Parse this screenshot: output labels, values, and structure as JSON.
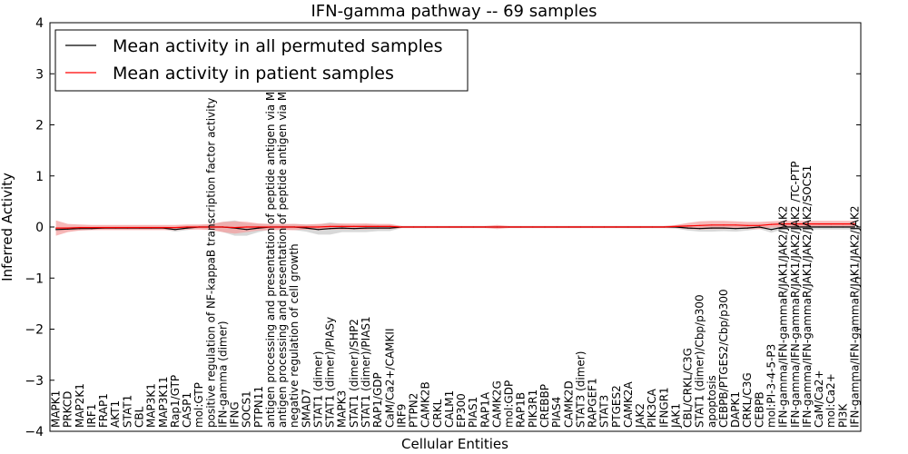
{
  "chart_data": {
    "type": "line",
    "title": "IFN-gamma pathway -- 69 samples",
    "xlabel": "Cellular Entities",
    "ylabel": "Inferred Activity",
    "ylim": [
      -4,
      4
    ],
    "yticks": [
      -4,
      -3,
      -2,
      -1,
      0,
      1,
      2,
      3,
      4
    ],
    "ytick_labels": [
      "−4",
      "−3",
      "−2",
      "−1",
      "0",
      "1",
      "2",
      "3",
      "4"
    ],
    "legend_position": "top-left",
    "categories": [
      "MAPK1",
      "PRKCD",
      "MAP2K1",
      "IRF1",
      "FRAP1",
      "AKT1",
      "STAT1",
      "CBL",
      "MAP3K1",
      "MAP3K11",
      "Rap1/GTP",
      "CASP1",
      "mol:GTP",
      "positive regulation of NF-kappaB transcription factor activity",
      "IFN-gamma (dimer)",
      "IFNG",
      "SOCS1",
      "PTPN11",
      "antigen processing and presentation of peptide antigen via MHC class I",
      "antigen processing and presentation of peptide antigen via MHC class II",
      "negative regulation of cell growth",
      "SMAD7",
      "STAT1 (dimer)",
      "STAT1 (dimer)/PIASy",
      "MAPK3",
      "STAT1 (dimer)/SHP2",
      "STAT1 (dimer)/PIAS1",
      "RAP1/GDP",
      "CaM/Ca2+/CAMKII",
      "IRF9",
      "PTPN2",
      "CAMK2B",
      "CRKL",
      "CALM1",
      "EP300",
      "PIAS1",
      "RAP1A",
      "CAMK2G",
      "mol:GDP",
      "RAP1B",
      "PIK3R1",
      "CREBBP",
      "PIAS4",
      "CAMK2D",
      "STAT3 (dimer)",
      "RAPGEF1",
      "STAT3",
      "PTGES2",
      "CAMK2A",
      "JAK2",
      "PIK3CA",
      "IFNGR1",
      "JAK1",
      "CBL/CRKL/C3G",
      "STAT1 (dimer)/Cbp/p300",
      "apoptosis",
      "CEBPB/PTGES2/Cbp/p300",
      "DAPK1",
      "CRKL/C3G",
      "CEBPB",
      "mol:PI-3-4-5-P3",
      "IFN-gamma/IFN-gammaR/JAK1/JAK2/JAK2",
      "IFN-gamma/IFN-gammaR/JAK1/JAK2/JAK2 /TC-PTP",
      "IFN-gamma/IFN-gammaR/JAK1/JAK2/JAK2/SOCS1",
      "CaM/Ca2+",
      "mol:Ca2+",
      "PI3K",
      "IFN-gamma/IFN-gammaR/JAK1/JAK2/JAK2"
    ],
    "series": [
      {
        "name": "Mean activity in all permuted samples",
        "color": "#000000",
        "band_color": "#c8c8c8",
        "values": [
          -0.05,
          -0.04,
          -0.03,
          -0.03,
          -0.02,
          -0.02,
          -0.02,
          -0.02,
          -0.02,
          -0.02,
          -0.05,
          -0.02,
          0.0,
          0.0,
          0.0,
          -0.02,
          -0.05,
          -0.02,
          0.0,
          0.0,
          0.0,
          -0.02,
          -0.05,
          -0.03,
          -0.02,
          -0.03,
          -0.02,
          -0.02,
          -0.02,
          0.0,
          0.0,
          0.0,
          0.0,
          0.0,
          0.0,
          0.0,
          0.0,
          0.0,
          0.0,
          0.0,
          0.0,
          0.0,
          0.0,
          0.0,
          0.0,
          0.0,
          0.0,
          0.0,
          0.0,
          0.0,
          0.0,
          0.0,
          0.0,
          -0.02,
          -0.03,
          -0.02,
          -0.02,
          -0.03,
          -0.02,
          0.0,
          -0.05,
          0.0,
          0.0,
          0.0,
          0.0,
          0.0,
          0.0,
          0.0
        ],
        "band": [
          0.04,
          0.04,
          0.04,
          0.03,
          0.03,
          0.03,
          0.03,
          0.03,
          0.03,
          0.03,
          0.04,
          0.04,
          0.03,
          0.05,
          0.1,
          0.15,
          0.12,
          0.08,
          0.05,
          0.05,
          0.06,
          0.07,
          0.1,
          0.12,
          0.08,
          0.07,
          0.08,
          0.06,
          0.06,
          0.02,
          0.02,
          0.02,
          0.02,
          0.02,
          0.02,
          0.02,
          0.02,
          0.02,
          0.02,
          0.02,
          0.02,
          0.02,
          0.02,
          0.02,
          0.02,
          0.02,
          0.02,
          0.02,
          0.02,
          0.02,
          0.02,
          0.02,
          0.03,
          0.05,
          0.06,
          0.07,
          0.06,
          0.06,
          0.05,
          0.04,
          0.06,
          0.04,
          0.05,
          0.05,
          0.05,
          0.05,
          0.05,
          0.05
        ]
      },
      {
        "name": "Mean activity in patient samples",
        "color": "#ff0000",
        "band_color": "#f4a0a0",
        "values": [
          -0.02,
          -0.02,
          -0.01,
          -0.01,
          -0.01,
          -0.01,
          -0.01,
          -0.01,
          -0.01,
          -0.01,
          -0.01,
          0.0,
          0.0,
          0.0,
          0.0,
          -0.01,
          0.0,
          0.0,
          0.0,
          0.0,
          0.0,
          0.0,
          0.0,
          0.01,
          0.01,
          0.01,
          0.01,
          0.01,
          0.01,
          0.0,
          0.0,
          0.0,
          0.0,
          0.0,
          0.0,
          0.0,
          0.0,
          0.0,
          0.0,
          0.0,
          0.0,
          0.0,
          0.0,
          0.0,
          0.0,
          0.0,
          0.0,
          0.0,
          0.0,
          0.0,
          0.0,
          0.0,
          0.01,
          0.02,
          0.03,
          0.04,
          0.04,
          0.04,
          0.03,
          0.03,
          0.05,
          0.06,
          0.06,
          0.06,
          0.06,
          0.06,
          0.06,
          0.06
        ],
        "band": [
          0.15,
          0.08,
          0.06,
          0.05,
          0.05,
          0.05,
          0.05,
          0.05,
          0.05,
          0.05,
          0.05,
          0.05,
          0.05,
          0.06,
          0.1,
          0.12,
          0.1,
          0.07,
          0.06,
          0.06,
          0.06,
          0.05,
          0.06,
          0.06,
          0.06,
          0.06,
          0.06,
          0.05,
          0.05,
          0.02,
          0.02,
          0.02,
          0.02,
          0.02,
          0.02,
          0.02,
          0.02,
          0.04,
          0.02,
          0.02,
          0.02,
          0.02,
          0.02,
          0.02,
          0.02,
          0.02,
          0.02,
          0.02,
          0.02,
          0.02,
          0.02,
          0.02,
          0.03,
          0.06,
          0.08,
          0.08,
          0.08,
          0.07,
          0.07,
          0.07,
          0.06,
          0.06,
          0.06,
          0.06,
          0.06,
          0.06,
          0.06,
          0.06
        ]
      }
    ]
  }
}
